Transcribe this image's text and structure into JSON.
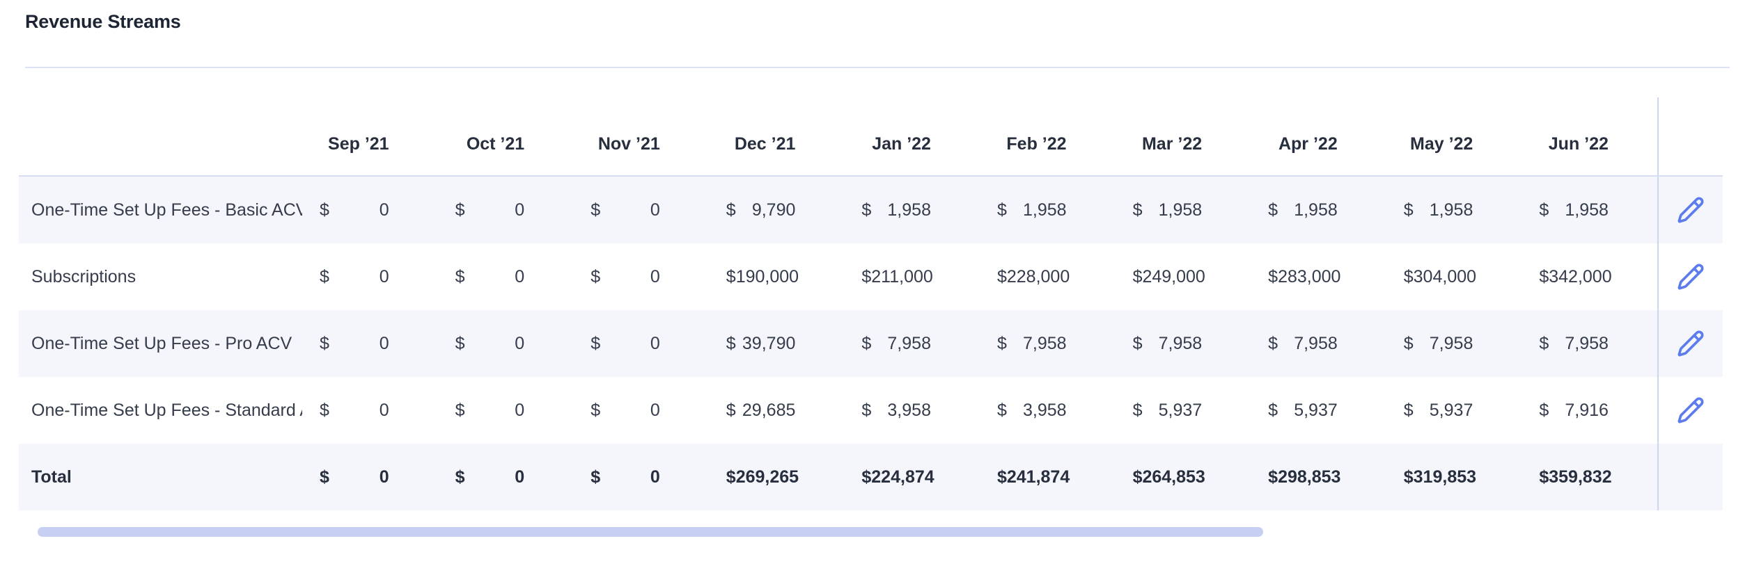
{
  "page": {
    "title": "Revenue Streams"
  },
  "table": {
    "currency": "$",
    "columns": [
      "Sep ’21",
      "Oct ’21",
      "Nov ’21",
      "Dec ’21",
      "Jan ’22",
      "Feb ’22",
      "Mar ’22",
      "Apr ’22",
      "May ’22",
      "Jun ’22"
    ],
    "rows": [
      {
        "label": "One-Time Set Up Fees - Basic ACV",
        "values": [
          "0",
          "0",
          "0",
          "9,790",
          "1,958",
          "1,958",
          "1,958",
          "1,958",
          "1,958",
          "1,958"
        ]
      },
      {
        "label": "Subscriptions",
        "values": [
          "0",
          "0",
          "0",
          "190,000",
          "211,000",
          "228,000",
          "249,000",
          "283,000",
          "304,000",
          "342,000"
        ]
      },
      {
        "label": "One-Time Set Up Fees - Pro ACV",
        "values": [
          "0",
          "0",
          "0",
          "39,790",
          "7,958",
          "7,958",
          "7,958",
          "7,958",
          "7,958",
          "7,958"
        ]
      },
      {
        "label": "One-Time Set Up Fees - Standard ACV",
        "values": [
          "0",
          "0",
          "0",
          "29,685",
          "3,958",
          "3,958",
          "5,937",
          "5,937",
          "5,937",
          "7,916"
        ]
      }
    ],
    "total": {
      "label": "Total",
      "values": [
        "0",
        "0",
        "0",
        "269,265",
        "224,874",
        "241,874",
        "264,853",
        "298,853",
        "319,853",
        "359,832"
      ]
    }
  },
  "icons": {
    "edit": "pencil-icon"
  },
  "colors": {
    "accent_blue": "#5b7cea",
    "row_tint": "#f5f6fb",
    "divider": "#d6def0",
    "scrollbar_thumb": "#c7d0f2",
    "text_dark": "#272e3d",
    "text_body": "#353c4b"
  }
}
